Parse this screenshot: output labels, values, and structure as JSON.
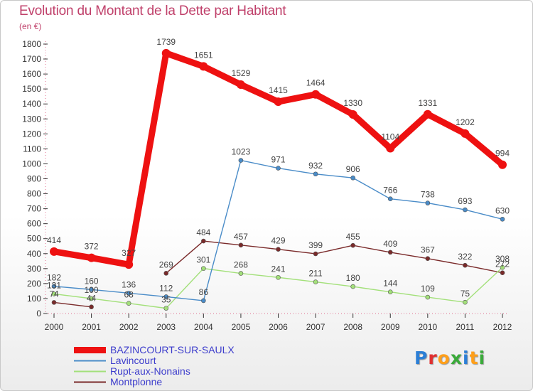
{
  "title": "Evolution du Montant de la Dette par Habitant",
  "unit_label": "(en €)",
  "logo_text": "Proxiti",
  "logo_colors": [
    "#2c7fd6",
    "#e03030",
    "#ff9f1a",
    "#3aaa3a",
    "#2c7fd6",
    "#ff9f1a",
    "#3aaa3a"
  ],
  "chart_data": {
    "type": "line",
    "x": [
      "2000",
      "2001",
      "2002",
      "2003",
      "2004",
      "2005",
      "2006",
      "2007",
      "2008",
      "2009",
      "2010",
      "2011",
      "2012"
    ],
    "ylim": [
      0,
      1800
    ],
    "yticks": [
      0,
      100,
      200,
      300,
      400,
      500,
      600,
      700,
      800,
      900,
      1000,
      1100,
      1200,
      1300,
      1400,
      1500,
      1600,
      1700,
      1800
    ],
    "grid": false,
    "legend_position": "bottom-left",
    "series": [
      {
        "name": "BAZINCOURT-SUR-SAULX",
        "color": "#ee1111",
        "values": [
          414,
          372,
          327,
          1739,
          1651,
          1529,
          1415,
          1464,
          1330,
          1104,
          1331,
          1202,
          994
        ]
      },
      {
        "name": "Lavincourt",
        "color": "#4a8cc8",
        "values": [
          182,
          160,
          136,
          112,
          86,
          1023,
          971,
          932,
          906,
          766,
          738,
          693,
          630
        ]
      },
      {
        "name": "Rupt-aux-Nonains",
        "color": "#a3e07a",
        "values": [
          131,
          100,
          68,
          35,
          301,
          268,
          241,
          211,
          180,
          144,
          109,
          75,
          308
        ]
      },
      {
        "name": "Montplonne",
        "color": "#7a2a2a",
        "values": [
          74,
          44,
          null,
          269,
          484,
          457,
          429,
          399,
          455,
          409,
          367,
          322,
          272
        ]
      }
    ]
  }
}
